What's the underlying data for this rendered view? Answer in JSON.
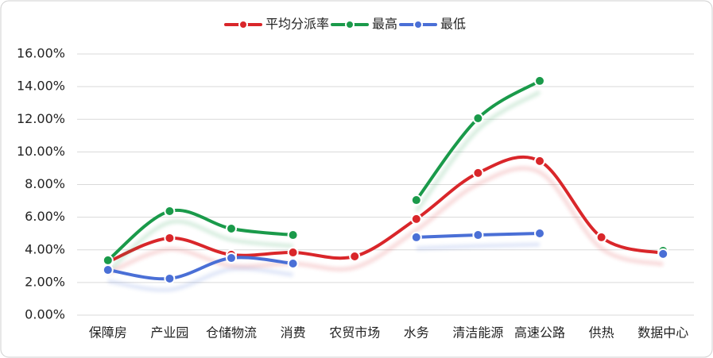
{
  "chart_data": {
    "type": "line",
    "categories": [
      "保障房",
      "产业园",
      "仓储物流",
      "消费",
      "农贸市场",
      "水务",
      "清洁能源",
      "高速公路",
      "供热",
      "数据中心"
    ],
    "series": [
      {
        "name": "平均分派率",
        "color": "#d9262a",
        "values": [
          3.26,
          4.72,
          3.7,
          3.84,
          3.6,
          5.89,
          8.71,
          9.44,
          4.77,
          3.79
        ]
      },
      {
        "name": "最高",
        "color": "#1a9a4a",
        "values": [
          3.36,
          6.37,
          5.3,
          4.91,
          null,
          7.05,
          12.06,
          14.35,
          null,
          3.94
        ]
      },
      {
        "name": "最低",
        "color": "#4a6fd6",
        "values": [
          2.77,
          2.24,
          3.5,
          3.16,
          null,
          4.77,
          4.91,
          5.01,
          null,
          3.75
        ]
      }
    ],
    "ylim": [
      0,
      16
    ],
    "yticks": [
      {
        "value": 0,
        "label": "0.00%"
      },
      {
        "value": 2,
        "label": "2.00%"
      },
      {
        "value": 4,
        "label": "4.00%"
      },
      {
        "value": 6,
        "label": "6.00%"
      },
      {
        "value": 8,
        "label": "8.00%"
      },
      {
        "value": 10,
        "label": "10.00%"
      },
      {
        "value": 12,
        "label": "12.00%"
      },
      {
        "value": 14,
        "label": "14.00%"
      },
      {
        "value": 16,
        "label": "16.00%"
      }
    ],
    "grid": true,
    "legend": "top"
  }
}
